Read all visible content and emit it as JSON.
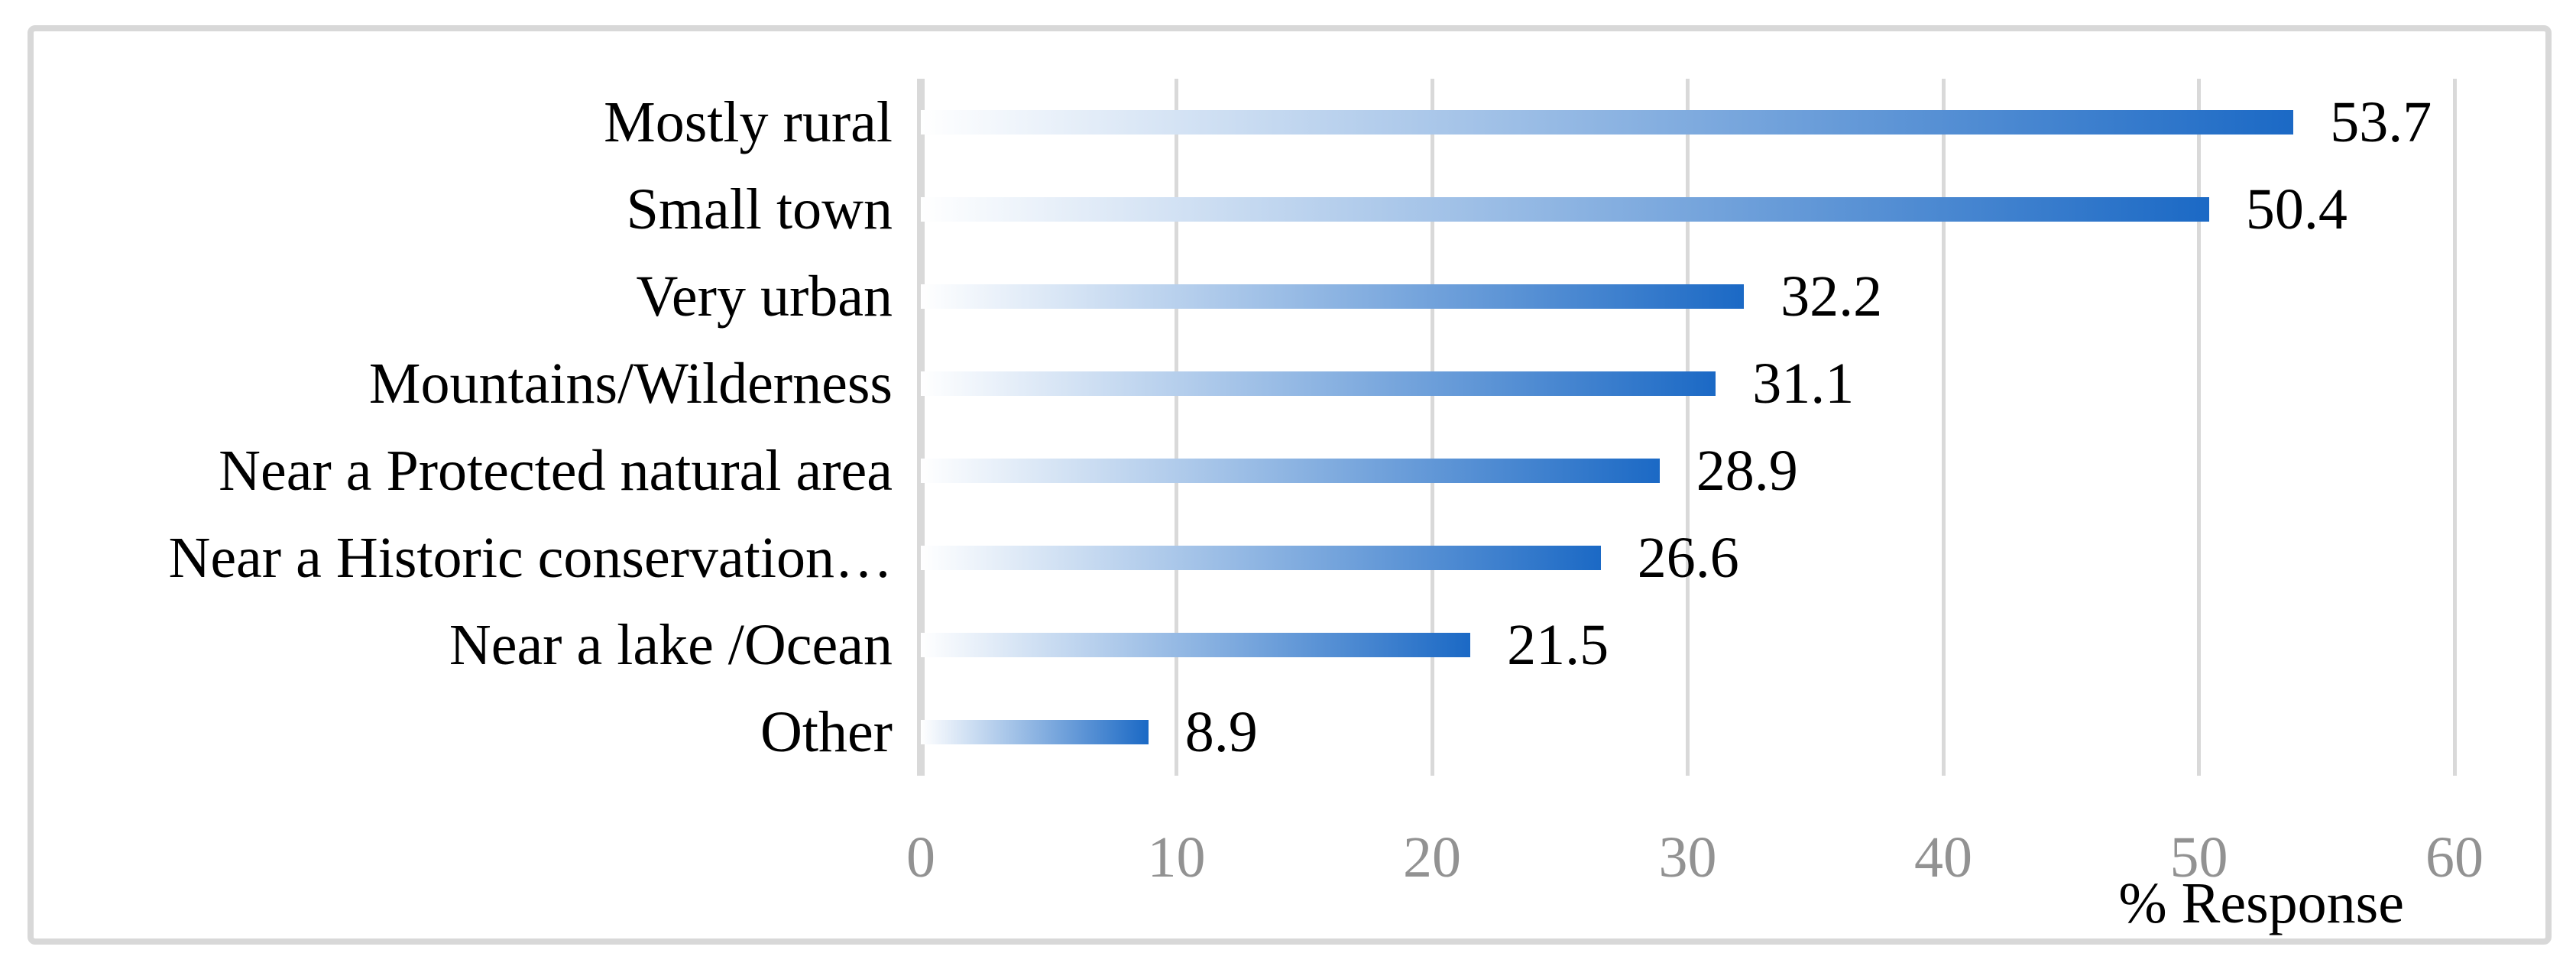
{
  "figure": {
    "border_color": "#d8d8d8",
    "background_color": "#ffffff"
  },
  "chart_data": {
    "type": "bar",
    "orientation": "horizontal",
    "title": "",
    "xlabel": "% Response",
    "ylabel": "",
    "categories": [
      "Mostly rural",
      "Small town",
      "Very urban",
      "Mountains/Wilderness",
      "Near a Protected natural area",
      "Near a Historic conservation…",
      "Near a lake /Ocean",
      "Other"
    ],
    "values": [
      53.7,
      50.4,
      32.2,
      31.1,
      28.9,
      26.6,
      21.5,
      8.9
    ],
    "value_labels": [
      "53.7",
      "50.4",
      "32.2",
      "31.1",
      "28.9",
      "26.6",
      "21.5",
      "8.9"
    ],
    "x_ticks": [
      0,
      10,
      20,
      30,
      40,
      50,
      60
    ],
    "x_tick_labels": [
      "0",
      "10",
      "20",
      "30",
      "40",
      "50",
      "60"
    ],
    "xlim": [
      0,
      60
    ],
    "grid": "vertical-gridlines-on",
    "legend": "none",
    "bar_gradient_start": "#ffffff",
    "bar_gradient_end": "#1b69c5",
    "gridline_color": "#d9d9d9",
    "tick_label_color": "#929292",
    "data_label_color": "#000000"
  }
}
